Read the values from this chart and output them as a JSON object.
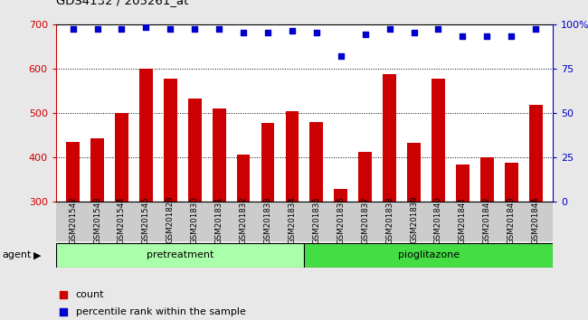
{
  "title": "GDS4132 / 205261_at",
  "categories": [
    "GSM201542",
    "GSM201543",
    "GSM201544",
    "GSM201545",
    "GSM201829",
    "GSM201830",
    "GSM201831",
    "GSM201832",
    "GSM201833",
    "GSM201834",
    "GSM201835",
    "GSM201836",
    "GSM201837",
    "GSM201838",
    "GSM201839",
    "GSM201840",
    "GSM201841",
    "GSM201842",
    "GSM201843",
    "GSM201844"
  ],
  "bar_values": [
    435,
    443,
    500,
    600,
    577,
    533,
    510,
    405,
    477,
    503,
    480,
    328,
    413,
    588,
    432,
    577,
    383,
    400,
    387,
    518
  ],
  "percentile_values": [
    97,
    97,
    97,
    98,
    97,
    97,
    97,
    95,
    95,
    96,
    95,
    82,
    94,
    97,
    95,
    97,
    93,
    93,
    93,
    97
  ],
  "pretreatment_count": 10,
  "bar_color": "#cc0000",
  "dot_color": "#0000cc",
  "bar_bottom": 300,
  "ylim_left": [
    300,
    700
  ],
  "ylim_right": [
    0,
    100
  ],
  "yticks_left": [
    300,
    400,
    500,
    600,
    700
  ],
  "yticks_right": [
    0,
    25,
    50,
    75,
    100
  ],
  "right_tick_labels": [
    "0",
    "25",
    "50",
    "75",
    "100%"
  ],
  "pretreatment_color": "#aaffaa",
  "pioglitazone_color": "#44dd44",
  "agent_label": "agent",
  "pretreatment_label": "pretreatment",
  "pioglitazone_label": "pioglitazone",
  "legend_count_label": "count",
  "legend_pct_label": "percentile rank within the sample",
  "tick_bg_color": "#cccccc",
  "fig_bg_color": "#e8e8e8",
  "plot_bg_color": "#ffffff"
}
